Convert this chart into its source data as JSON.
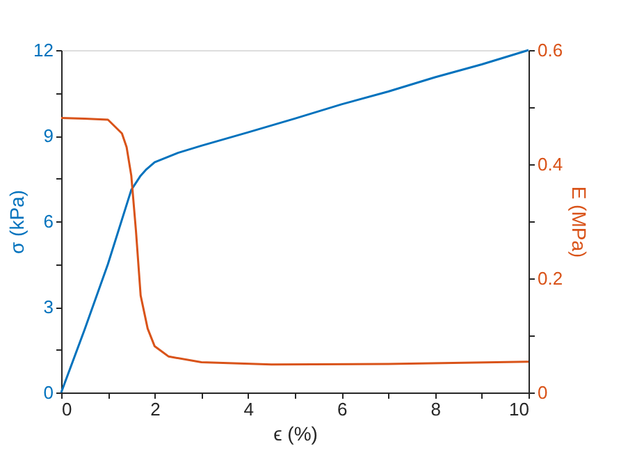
{
  "chart_data": {
    "type": "line",
    "xlabel": "ϵ (%)",
    "ylabel": "σ (kPa)",
    "y2label": "E (MPa)",
    "xlim": [
      0,
      10
    ],
    "xticks": [
      0,
      {
        "value": 1,
        "label": null
      },
      2,
      {
        "value": 3,
        "label": null
      },
      4,
      {
        "value": 5,
        "label": null
      },
      6,
      {
        "value": 7,
        "label": null
      },
      8,
      {
        "value": 9,
        "label": null
      },
      10
    ],
    "ylim": [
      0,
      12
    ],
    "yticks": [
      0,
      {
        "value": 1.5,
        "label": null
      },
      3,
      {
        "value": 4.5,
        "label": null
      },
      6,
      {
        "value": 7.5,
        "label": null
      },
      9,
      {
        "value": 10.5,
        "label": null
      },
      12
    ],
    "y2lim": [
      0,
      0.6
    ],
    "y2ticks": [
      0,
      {
        "value": 0.1,
        "label": null
      },
      0.2,
      {
        "value": 0.3,
        "label": null
      },
      0.4,
      {
        "value": 0.5,
        "label": null
      },
      0.6
    ],
    "grid": false,
    "line_style": "solid",
    "marker": "none",
    "series": [
      {
        "color": "#0072bd",
        "x": [
          0,
          0.5,
          1,
          1.5,
          1.7,
          1.81,
          2,
          2.5,
          3,
          4,
          5,
          6,
          7,
          8,
          9,
          10
        ],
        "values": [
          0,
          2.2,
          4.5,
          7.1,
          7.6,
          7.8,
          8.07,
          8.4,
          8.65,
          9.12,
          9.6,
          10.1,
          10.55,
          11.05,
          11.5,
          12
        ]
      },
      {
        "color": "#d95319",
        "axis": "y2",
        "x": [
          0,
          0.5,
          1,
          1.3,
          1.4,
          1.5,
          1.6,
          1.7,
          1.85,
          2,
          2.3,
          3,
          4.5,
          7,
          10
        ],
        "values": [
          0.481,
          0.48,
          0.478,
          0.454,
          0.43,
          0.38,
          0.283,
          0.17,
          0.112,
          0.081,
          0.063,
          0.053,
          0.049,
          0.05,
          0.054
        ]
      }
    ]
  }
}
